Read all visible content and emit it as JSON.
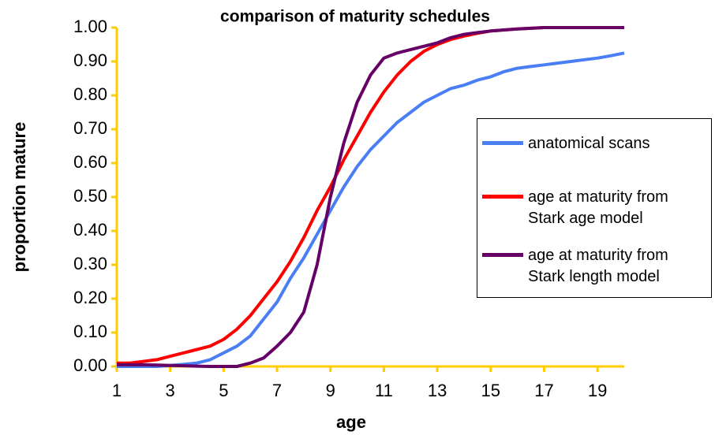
{
  "chart_data": {
    "type": "line",
    "title": "comparison of maturity schedules",
    "x_label": "age",
    "y_label": "proportion mature",
    "x": [
      1,
      1.5,
      2,
      2.5,
      3,
      3.5,
      4,
      4.5,
      5,
      5.5,
      6,
      6.5,
      7,
      7.5,
      8,
      8.5,
      9,
      9.5,
      10,
      10.5,
      11,
      11.5,
      12,
      12.5,
      13,
      13.5,
      14,
      14.5,
      15,
      15.5,
      16,
      16.5,
      17,
      17.5,
      18,
      18.5,
      19,
      19.5,
      20
    ],
    "series": [
      {
        "name": "anatomical scans",
        "color": "#4a7ef5",
        "values": [
          0,
          0,
          0,
          0,
          0.003,
          0.006,
          0.01,
          0.02,
          0.04,
          0.06,
          0.09,
          0.14,
          0.19,
          0.26,
          0.32,
          0.39,
          0.46,
          0.53,
          0.59,
          0.64,
          0.68,
          0.72,
          0.75,
          0.78,
          0.8,
          0.82,
          0.83,
          0.845,
          0.855,
          0.87,
          0.88,
          0.885,
          0.89,
          0.895,
          0.9,
          0.905,
          0.91,
          0.917,
          0.925
        ]
      },
      {
        "name": "age at maturity from Stark age model",
        "color": "#ff0000",
        "values": [
          0.01,
          0.01,
          0.015,
          0.02,
          0.03,
          0.04,
          0.05,
          0.06,
          0.08,
          0.11,
          0.15,
          0.2,
          0.25,
          0.31,
          0.38,
          0.46,
          0.53,
          0.61,
          0.68,
          0.75,
          0.81,
          0.86,
          0.9,
          0.93,
          0.95,
          0.965,
          0.975,
          0.983,
          0.99,
          0.993,
          0.996,
          0.998,
          1,
          1,
          1,
          1,
          1,
          1,
          1
        ]
      },
      {
        "name": "age at maturity from Stark length model",
        "color": "#660066",
        "values": [
          0.005,
          0.005,
          0.005,
          0.004,
          0.003,
          0.002,
          0.001,
          0,
          0,
          0,
          0.01,
          0.025,
          0.06,
          0.1,
          0.16,
          0.3,
          0.5,
          0.66,
          0.78,
          0.86,
          0.91,
          0.925,
          0.935,
          0.945,
          0.955,
          0.97,
          0.98,
          0.985,
          0.99,
          0.993,
          0.996,
          0.998,
          1,
          1,
          1,
          1,
          1,
          1,
          1
        ]
      }
    ],
    "xlim": [
      1,
      20
    ],
    "xticks": [
      1,
      3,
      5,
      7,
      9,
      11,
      13,
      15,
      17,
      19
    ],
    "ylim": [
      0,
      1
    ],
    "yticks": [
      {
        "value": 0,
        "label": "0.00"
      },
      {
        "value": 0.1,
        "label": "0.10"
      },
      {
        "value": 0.2,
        "label": "0.20"
      },
      {
        "value": 0.3,
        "label": "0.30"
      },
      {
        "value": 0.4,
        "label": "0.40"
      },
      {
        "value": 0.5,
        "label": "0.50"
      },
      {
        "value": 0.6,
        "label": "0.60"
      },
      {
        "value": 0.7,
        "label": "0.70"
      },
      {
        "value": 0.8,
        "label": "0.80"
      },
      {
        "value": 0.9,
        "label": "0.90"
      },
      {
        "value": 1,
        "label": "1.00"
      }
    ],
    "axis_color": "#ffcc00",
    "grid": false,
    "legend": "right"
  }
}
